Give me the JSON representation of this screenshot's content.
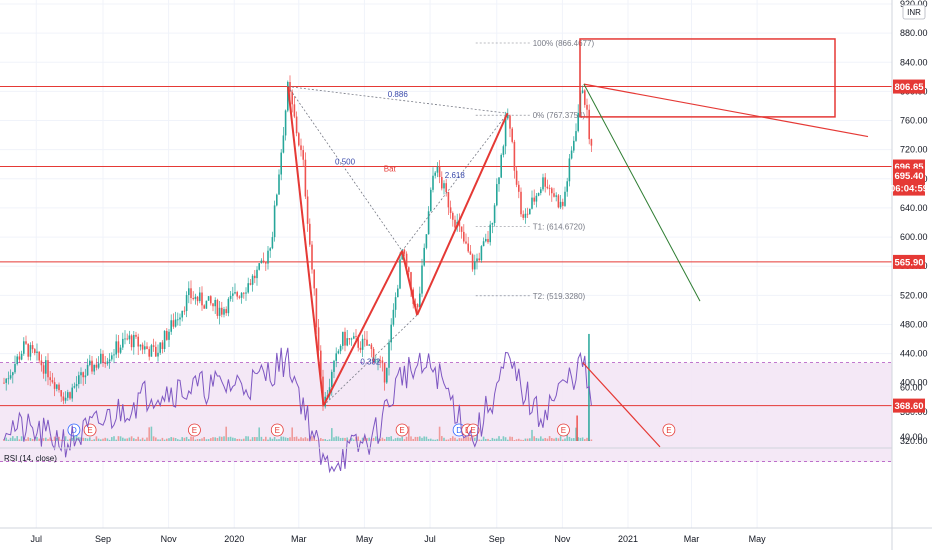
{
  "currency_badge": "INR",
  "chart_data": {
    "type": "candlestick",
    "price_axis": {
      "ticks": [
        "920.00",
        "880.00",
        "840.00",
        "800.00",
        "760.00",
        "720.00",
        "680.00",
        "640.00",
        "600.00",
        "560.00",
        "520.00",
        "480.00",
        "440.00",
        "400.00",
        "360.00",
        "320.00"
      ],
      "ylim": [
        320,
        920
      ]
    },
    "time_axis": {
      "ticks": [
        "Jul",
        "Sep",
        "Nov",
        "2020",
        "Mar",
        "May",
        "Jul",
        "Sep",
        "Nov",
        "2021",
        "Mar",
        "May"
      ]
    },
    "horizontal_levels": [
      {
        "value": 806.65,
        "label": "806.65"
      },
      {
        "value": 696.85,
        "label": "696.85"
      },
      {
        "value": 565.9,
        "label": "565.90"
      },
      {
        "value": 368.6,
        "label": "368.60"
      }
    ],
    "last_price": {
      "value": 695.4,
      "label": "695.40",
      "countdown": "06:04:59"
    },
    "pattern": {
      "name": "Bat",
      "ratios": [
        "0.886",
        "0.500",
        "2.618",
        "0.382"
      ],
      "pivots": [
        {
          "date": "2020-02-20",
          "price": 806.65
        },
        {
          "date": "2020-03-24",
          "price": 368.6
        },
        {
          "date": "2020-06-05",
          "price": 581
        },
        {
          "date": "2020-06-19",
          "price": 493
        },
        {
          "date": "2020-09-11",
          "price": 770
        }
      ]
    },
    "targets": [
      {
        "label": "100% (866.4677)",
        "price": 866.4677
      },
      {
        "label": "0% (767.3754)",
        "price": 767.3754
      },
      {
        "label": "T1: (614.6720)",
        "price": 614.672
      },
      {
        "label": "T2: (519.3280)",
        "price": 519.328
      }
    ],
    "rsi": {
      "title": "RSI (14, close)",
      "ticks": [
        "60.00",
        "40.00"
      ],
      "band": [
        30,
        70
      ]
    },
    "event_markers": [
      {
        "label": "D"
      },
      {
        "label": "E"
      },
      {
        "label": "E"
      },
      {
        "label": "E"
      },
      {
        "label": "E"
      },
      {
        "label": "D"
      },
      {
        "label": "E"
      },
      {
        "label": "E"
      },
      {
        "label": "E"
      },
      {
        "label": "E"
      }
    ]
  }
}
